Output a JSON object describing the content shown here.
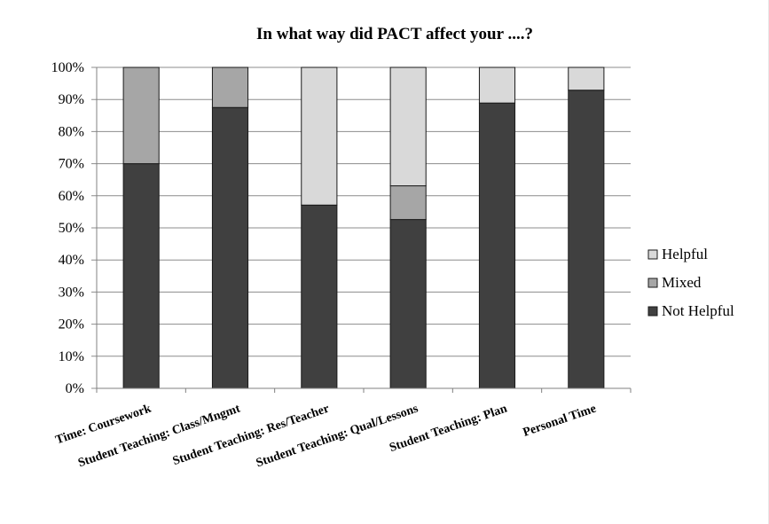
{
  "chart_data": {
    "type": "bar",
    "stacked": true,
    "percent": true,
    "title": "In what way did PACT affect your ....?",
    "xlabel": "",
    "ylabel": "",
    "ylim": [
      0,
      100
    ],
    "yticks": [
      "0%",
      "10%",
      "20%",
      "30%",
      "40%",
      "50%",
      "60%",
      "70%",
      "80%",
      "90%",
      "100%"
    ],
    "categories": [
      "Time: Coursework",
      "Student Teaching: Class/Mngmt",
      "Student Teaching: Res/Teacher",
      "Student Teaching: Qual/Lessons",
      "Student Teaching: Plan",
      "Personal Time"
    ],
    "series": [
      {
        "name": "Not Helpful",
        "color": "#404040",
        "values": [
          70,
          87.5,
          57.1,
          52.6,
          88.9,
          92.9
        ]
      },
      {
        "name": "Mixed",
        "color": "#a6a6a6",
        "values": [
          30,
          12.5,
          0,
          10.5,
          0,
          0
        ]
      },
      {
        "name": "Helpful",
        "color": "#d9d9d9",
        "values": [
          0,
          0,
          42.9,
          36.9,
          11.1,
          7.1
        ]
      }
    ],
    "legend": {
      "position": "right",
      "order": [
        "Helpful",
        "Mixed",
        "Not Helpful"
      ]
    },
    "grid": true
  }
}
